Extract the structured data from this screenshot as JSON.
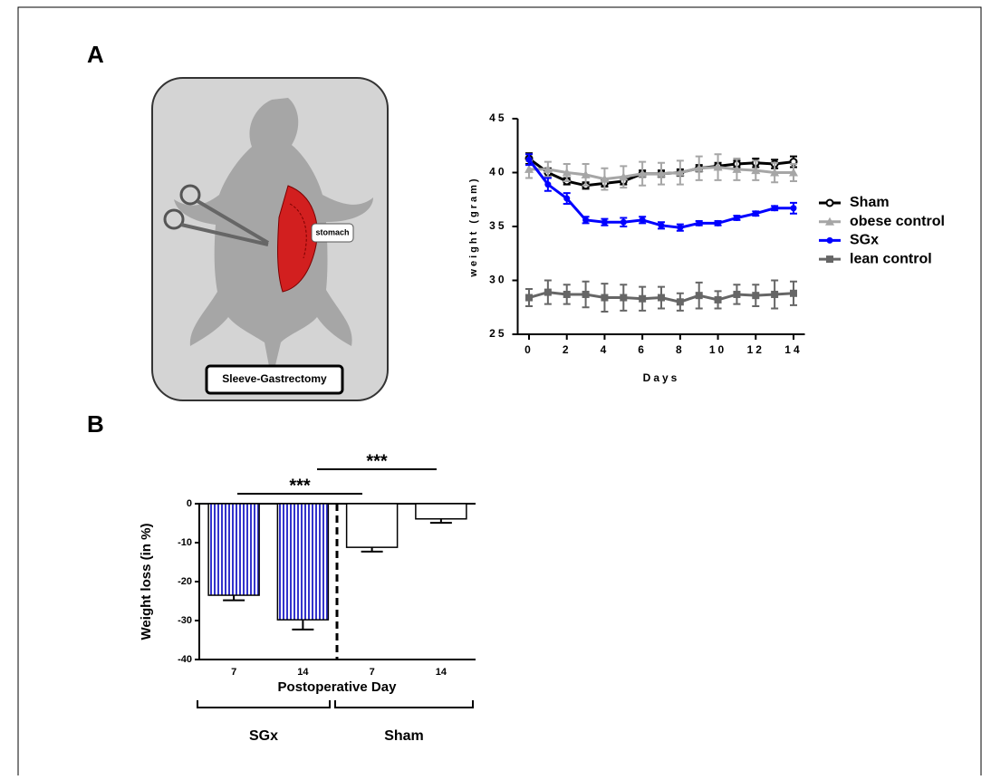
{
  "panels": [
    "A",
    "B"
  ],
  "illustration": {
    "organ_label": "stomach",
    "caption": "Sleeve-Gastrectomy"
  },
  "chart_data": [
    {
      "type": "line",
      "ylabel": "weight (gram)",
      "xlabel": "Days",
      "x": [
        0,
        1,
        2,
        3,
        4,
        5,
        6,
        7,
        8,
        9,
        10,
        11,
        12,
        13,
        14
      ],
      "xlim": [
        -0.6,
        14.6
      ],
      "xticks": [
        0,
        2,
        4,
        6,
        8,
        10,
        12,
        14
      ],
      "ylim": [
        25,
        45
      ],
      "yticks": [
        25,
        30,
        35,
        40,
        45
      ],
      "series": [
        {
          "name": "Sham",
          "color": "#000000",
          "marker": "circle-open",
          "values": [
            41.3,
            40.0,
            39.2,
            38.8,
            39.0,
            39.2,
            39.9,
            39.9,
            40.0,
            40.4,
            40.6,
            40.8,
            40.9,
            40.8,
            41.0
          ],
          "errors": [
            0.5,
            0.4,
            0.3,
            0.3,
            0.3,
            0.3,
            0.3,
            0.3,
            0.3,
            0.3,
            0.3,
            0.3,
            0.4,
            0.4,
            0.5
          ]
        },
        {
          "name": "obese control",
          "color": "#a6a6a6",
          "marker": "triangle",
          "values": [
            40.3,
            40.3,
            40.0,
            39.8,
            39.4,
            39.6,
            39.9,
            39.9,
            40.0,
            40.4,
            40.5,
            40.3,
            40.2,
            40.0,
            40.0
          ],
          "errors": [
            0.8,
            0.7,
            0.8,
            1.0,
            1.0,
            1.0,
            1.1,
            1.0,
            1.1,
            1.1,
            1.2,
            1.0,
            0.9,
            0.9,
            0.8
          ]
        },
        {
          "name": "SGx",
          "color": "#0000ff",
          "marker": "circle",
          "values": [
            41.2,
            38.9,
            37.6,
            35.6,
            35.4,
            35.4,
            35.6,
            35.1,
            34.9,
            35.3,
            35.3,
            35.8,
            36.2,
            36.7,
            36.7
          ],
          "errors": [
            0.5,
            0.6,
            0.5,
            0.3,
            0.3,
            0.4,
            0.3,
            0.3,
            0.3,
            0.2,
            0.2,
            0.2,
            0.2,
            0.2,
            0.5
          ]
        },
        {
          "name": "lean control",
          "color": "#666666",
          "marker": "square",
          "values": [
            28.4,
            28.9,
            28.7,
            28.7,
            28.4,
            28.4,
            28.3,
            28.4,
            28.0,
            28.6,
            28.2,
            28.7,
            28.6,
            28.7,
            28.8
          ],
          "errors": [
            0.8,
            1.1,
            0.9,
            1.2,
            1.3,
            1.2,
            1.1,
            1.0,
            0.8,
            1.2,
            0.8,
            0.9,
            1.0,
            1.3,
            1.1
          ]
        }
      ]
    },
    {
      "type": "bar",
      "ylabel": "Weight loss (in %)",
      "xlabel": "Postoperative Day",
      "categories": [
        "7",
        "14",
        "7",
        "14"
      ],
      "values": [
        -23.5,
        -29.8,
        -11.2,
        -3.9
      ],
      "errors": [
        1.3,
        2.5,
        1.1,
        1.0
      ],
      "colors": [
        "#3333cc",
        "#3333cc",
        "#ffffff",
        "#ffffff"
      ],
      "hatch": [
        true,
        true,
        false,
        false
      ],
      "groups": [
        "SGx",
        "Sham"
      ],
      "annotations": [
        "***",
        "***"
      ],
      "ylim": [
        -40,
        0
      ],
      "yticks": [
        -40,
        -30,
        -20,
        -10,
        0
      ]
    }
  ]
}
